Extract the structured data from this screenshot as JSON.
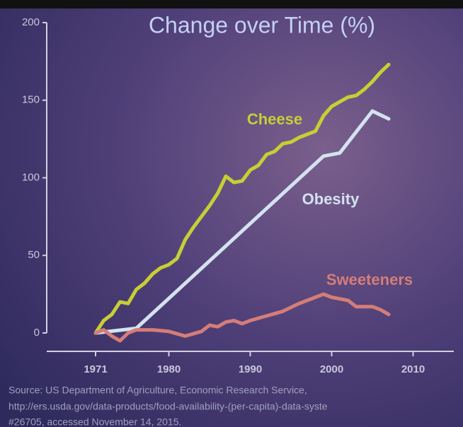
{
  "chart_data": {
    "type": "line",
    "title": "Change over Time (%)",
    "xlim": [
      1965,
      2015
    ],
    "xticks": [
      1971,
      1980,
      1990,
      2000,
      2010
    ],
    "ylim": [
      0,
      200
    ],
    "yticks": [
      0,
      50,
      100,
      150,
      200
    ],
    "series": [
      {
        "name": "Cheese",
        "color": "#c6cf34",
        "x": [
          1971,
          1972,
          1973,
          1974,
          1975,
          1976,
          1977,
          1978,
          1979,
          1980,
          1981,
          1982,
          1983,
          1984,
          1985,
          1986,
          1987,
          1988,
          1989,
          1990,
          1991,
          1992,
          1993,
          1994,
          1995,
          1996,
          1997,
          1998,
          1999,
          2000,
          2001,
          2002,
          2003,
          2004,
          2005,
          2006,
          2007
        ],
        "values": [
          0,
          8,
          12,
          20,
          19,
          28,
          32,
          38,
          42,
          44,
          48,
          60,
          68,
          75,
          82,
          90,
          101,
          97,
          98,
          105,
          108,
          115,
          117,
          122,
          123,
          126,
          128,
          130,
          140,
          146,
          149,
          152,
          153,
          157,
          162,
          168,
          173
        ]
      },
      {
        "name": "Obesity",
        "color": "#d4e2f0",
        "x": [
          1971,
          1976,
          1999,
          2001,
          2005,
          2007
        ],
        "values": [
          0,
          3,
          114,
          116,
          143,
          138
        ]
      },
      {
        "name": "Sweeteners",
        "color": "#d47d78",
        "x": [
          1971,
          1972,
          1973,
          1974,
          1975,
          1976,
          1978,
          1980,
          1982,
          1984,
          1985,
          1986,
          1987,
          1988,
          1989,
          1990,
          1992,
          1994,
          1996,
          1998,
          1999,
          2000,
          2002,
          2003,
          2005,
          2006,
          2007
        ],
        "values": [
          0,
          2,
          -2,
          -5,
          0,
          2,
          2,
          1,
          -2,
          1,
          5,
          4,
          7,
          8,
          6,
          8,
          11,
          14,
          19,
          23,
          25,
          23,
          21,
          17,
          17,
          15,
          12
        ]
      }
    ],
    "source": [
      "Source: US  Department of Agriculture, Economic Research Service,",
      "http://ers.usda.gov/data-products/food-availability-(per-capita)-data-syste",
      "#26705, accessed November 14, 2015."
    ]
  }
}
